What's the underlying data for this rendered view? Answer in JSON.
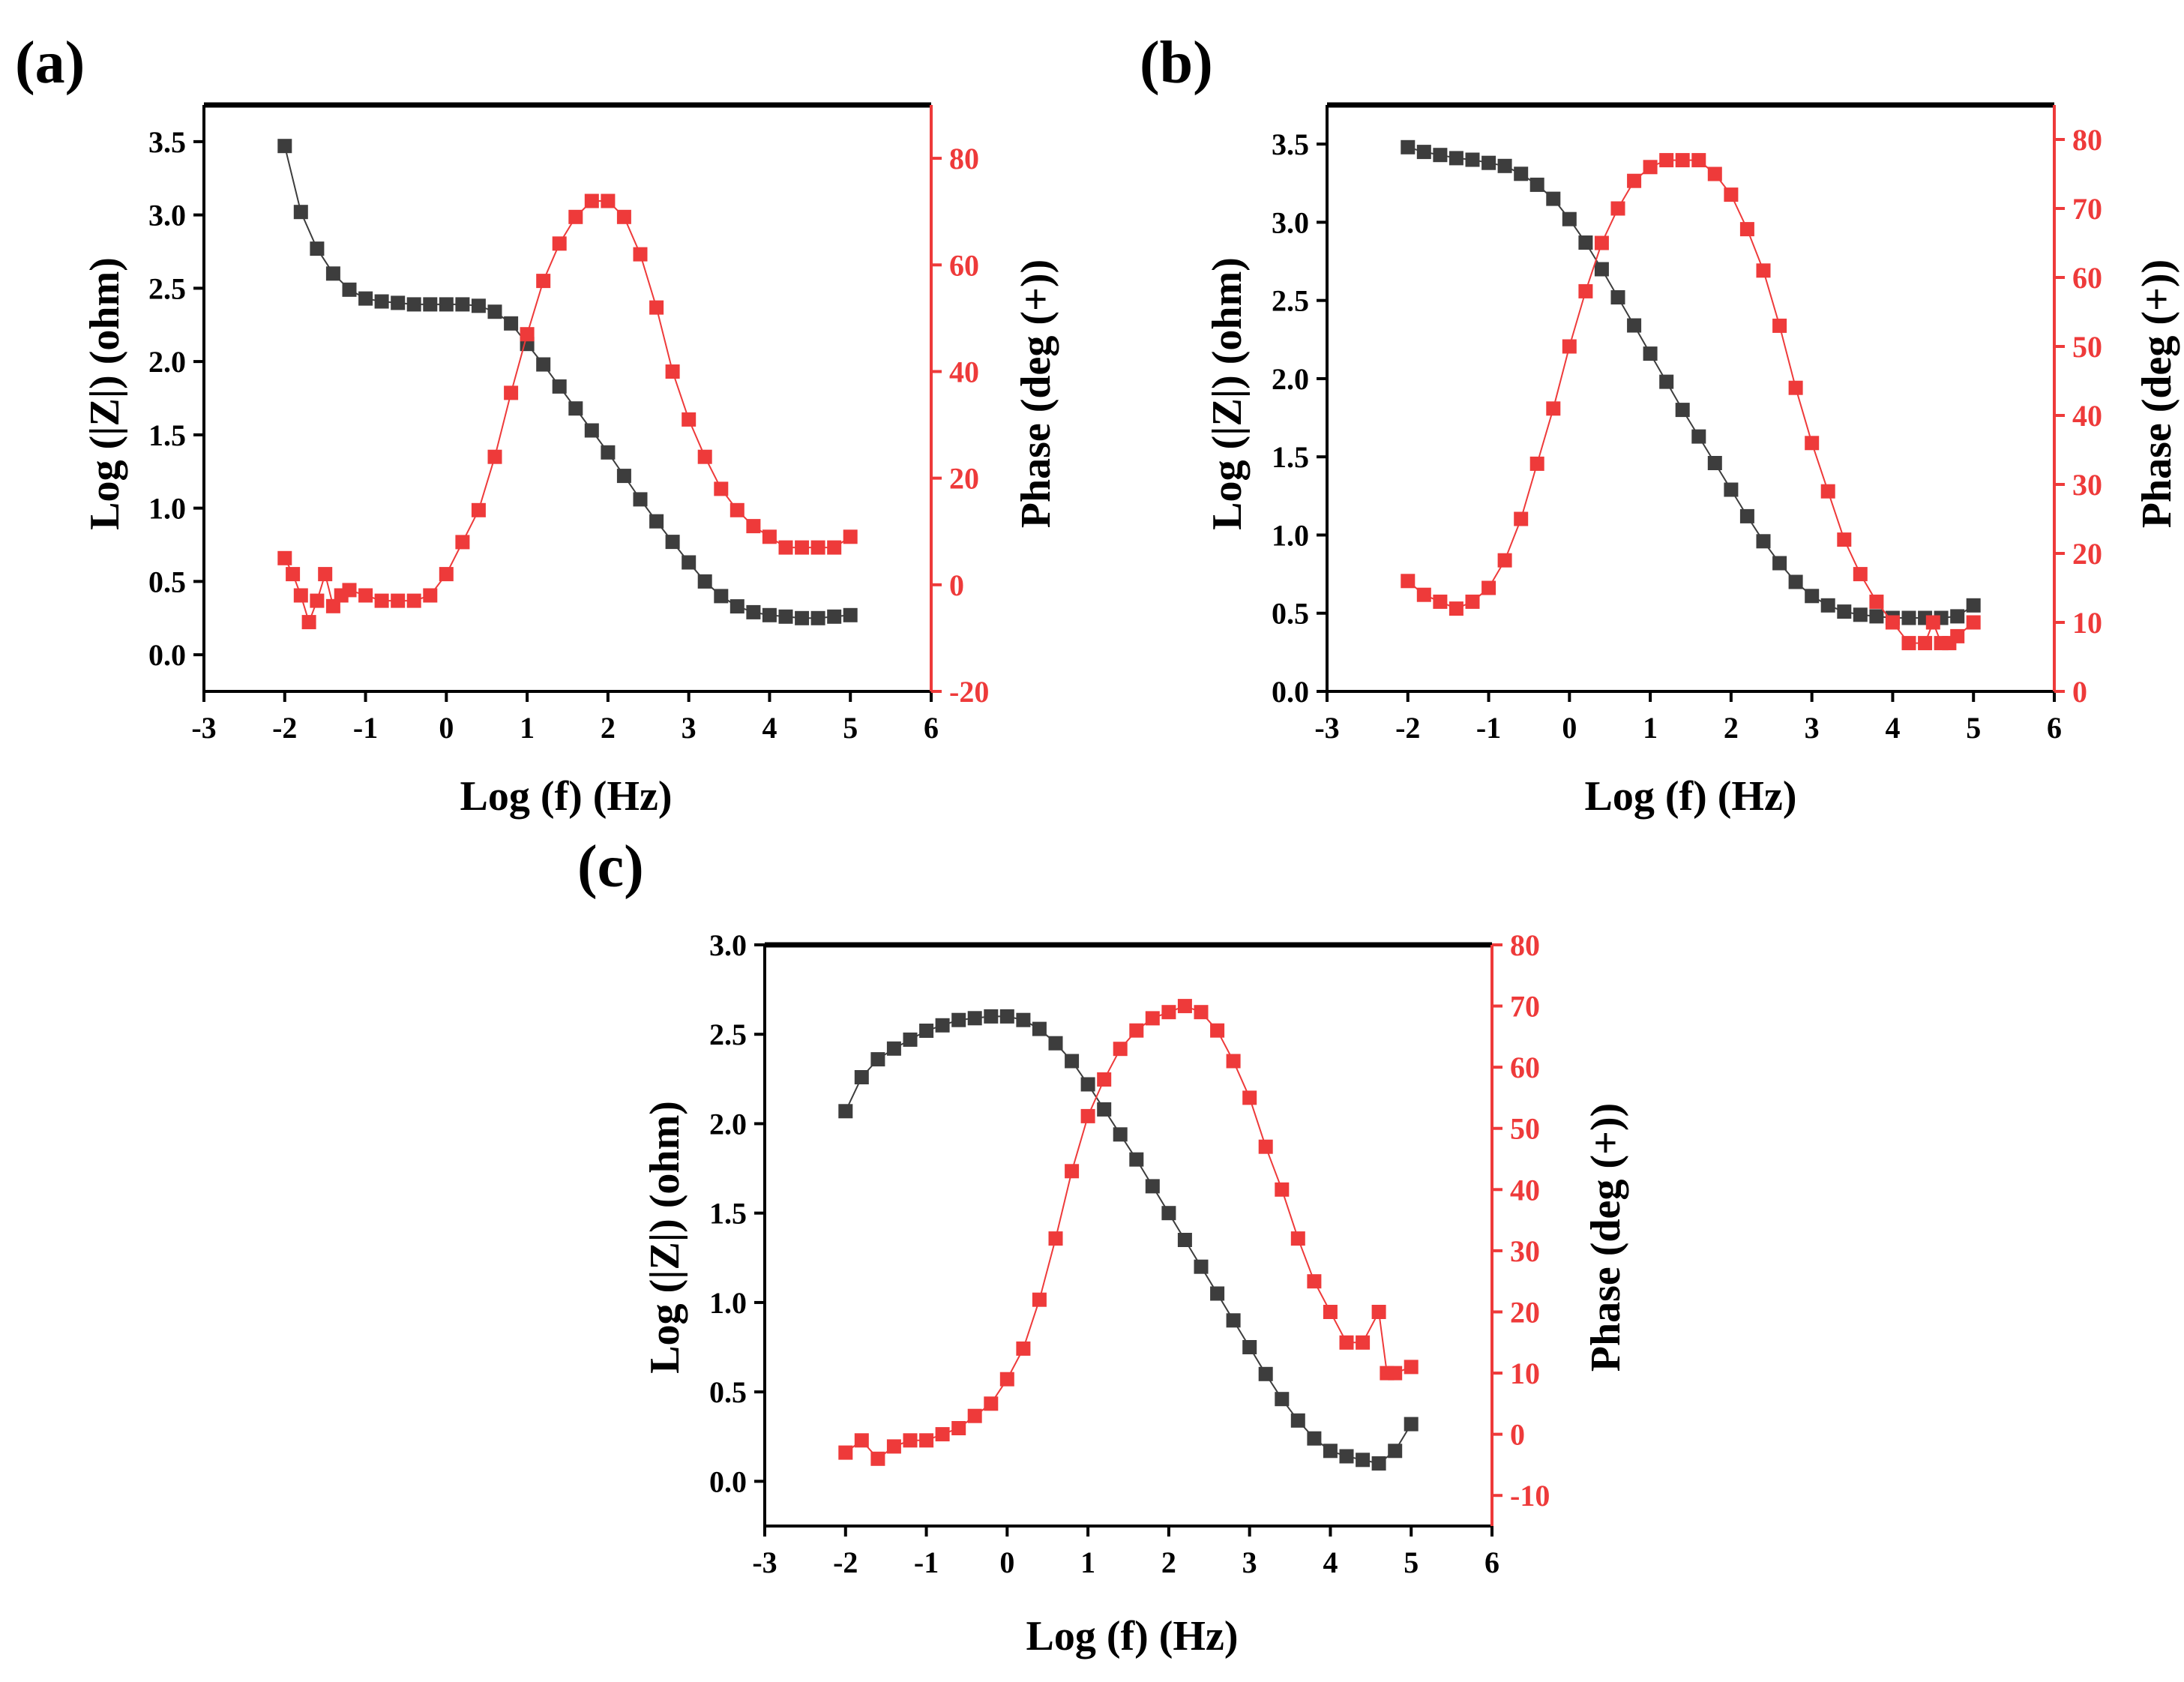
{
  "figure": {
    "colors": {
      "impedance": "#3d3d3d",
      "phase": "#ee3a3a",
      "frame": "#000000"
    }
  },
  "chart_data": [
    {
      "panel_label": "(a)",
      "type": "scatter",
      "xlabel": "Log (f) (Hz)",
      "ylabel_left": "Log (|Z|) (ohm)",
      "ylabel_right": "Phase (deg (+))",
      "xlim": [
        -3,
        6
      ],
      "ylim_left": [
        -0.25,
        3.75
      ],
      "ylim_right": [
        -20,
        90
      ],
      "xticks": [
        "-3",
        "-2",
        "-1",
        "0",
        "1",
        "2",
        "3",
        "4",
        "5",
        "6"
      ],
      "yticks_left": [
        "0.0",
        "0.5",
        "1.0",
        "1.5",
        "2.0",
        "2.5",
        "3.0",
        "3.5"
      ],
      "yticks_right": [
        "-20",
        "0",
        "20",
        "40",
        "60",
        "80"
      ],
      "series": [
        {
          "name": "Log (|Z|)",
          "axis": "left",
          "color": "#3d3d3d",
          "points": [
            [
              -2.0,
              3.47
            ],
            [
              -1.8,
              3.02
            ],
            [
              -1.6,
              2.77
            ],
            [
              -1.4,
              2.6
            ],
            [
              -1.2,
              2.49
            ],
            [
              -1.0,
              2.43
            ],
            [
              -0.8,
              2.41
            ],
            [
              -0.6,
              2.4
            ],
            [
              -0.4,
              2.39
            ],
            [
              -0.2,
              2.39
            ],
            [
              0.0,
              2.39
            ],
            [
              0.2,
              2.39
            ],
            [
              0.4,
              2.38
            ],
            [
              0.6,
              2.34
            ],
            [
              0.8,
              2.26
            ],
            [
              1.0,
              2.12
            ],
            [
              1.2,
              1.98
            ],
            [
              1.4,
              1.83
            ],
            [
              1.6,
              1.68
            ],
            [
              1.8,
              1.53
            ],
            [
              2.0,
              1.38
            ],
            [
              2.2,
              1.22
            ],
            [
              2.4,
              1.06
            ],
            [
              2.6,
              0.91
            ],
            [
              2.8,
              0.77
            ],
            [
              3.0,
              0.63
            ],
            [
              3.2,
              0.5
            ],
            [
              3.4,
              0.4
            ],
            [
              3.6,
              0.33
            ],
            [
              3.8,
              0.29
            ],
            [
              4.0,
              0.27
            ],
            [
              4.2,
              0.26
            ],
            [
              4.4,
              0.25
            ],
            [
              4.6,
              0.25
            ],
            [
              4.8,
              0.26
            ],
            [
              5.0,
              0.27
            ]
          ]
        },
        {
          "name": "Phase",
          "axis": "right",
          "color": "#ee3a3a",
          "points": [
            [
              -2.0,
              5
            ],
            [
              -1.9,
              2
            ],
            [
              -1.8,
              -2
            ],
            [
              -1.7,
              -7
            ],
            [
              -1.6,
              -3
            ],
            [
              -1.5,
              2
            ],
            [
              -1.4,
              -4
            ],
            [
              -1.3,
              -2
            ],
            [
              -1.2,
              -1
            ],
            [
              -1.0,
              -2
            ],
            [
              -0.8,
              -3
            ],
            [
              -0.6,
              -3
            ],
            [
              -0.4,
              -3
            ],
            [
              -0.2,
              -2
            ],
            [
              0.0,
              2
            ],
            [
              0.2,
              8
            ],
            [
              0.4,
              14
            ],
            [
              0.6,
              24
            ],
            [
              0.8,
              36
            ],
            [
              1.0,
              47
            ],
            [
              1.2,
              57
            ],
            [
              1.4,
              64
            ],
            [
              1.6,
              69
            ],
            [
              1.8,
              72
            ],
            [
              2.0,
              72
            ],
            [
              2.2,
              69
            ],
            [
              2.4,
              62
            ],
            [
              2.6,
              52
            ],
            [
              2.8,
              40
            ],
            [
              3.0,
              31
            ],
            [
              3.2,
              24
            ],
            [
              3.4,
              18
            ],
            [
              3.6,
              14
            ],
            [
              3.8,
              11
            ],
            [
              4.0,
              9
            ],
            [
              4.2,
              7
            ],
            [
              4.4,
              7
            ],
            [
              4.6,
              7
            ],
            [
              4.8,
              7
            ],
            [
              5.0,
              9
            ]
          ]
        }
      ]
    },
    {
      "panel_label": "(b)",
      "type": "scatter",
      "xlabel": "Log (f) (Hz)",
      "ylabel_left": "Log (|Z|) (ohm)",
      "ylabel_right": "Phase (deg (+))",
      "xlim": [
        -3,
        6
      ],
      "ylim_left": [
        0.0,
        3.75
      ],
      "ylim_right": [
        0,
        85
      ],
      "xticks": [
        "-3",
        "-2",
        "-1",
        "0",
        "1",
        "2",
        "3",
        "4",
        "5",
        "6"
      ],
      "yticks_left": [
        "0.0",
        "0.5",
        "1.0",
        "1.5",
        "2.0",
        "2.5",
        "3.0",
        "3.5"
      ],
      "yticks_right": [
        "0",
        "10",
        "20",
        "30",
        "40",
        "50",
        "60",
        "70",
        "80"
      ],
      "series": [
        {
          "name": "Log (|Z|)",
          "axis": "left",
          "color": "#3d3d3d",
          "points": [
            [
              -2.0,
              3.48
            ],
            [
              -1.8,
              3.45
            ],
            [
              -1.6,
              3.43
            ],
            [
              -1.4,
              3.41
            ],
            [
              -1.2,
              3.4
            ],
            [
              -1.0,
              3.38
            ],
            [
              -0.8,
              3.36
            ],
            [
              -0.6,
              3.31
            ],
            [
              -0.4,
              3.24
            ],
            [
              -0.2,
              3.15
            ],
            [
              0.0,
              3.02
            ],
            [
              0.2,
              2.87
            ],
            [
              0.4,
              2.7
            ],
            [
              0.6,
              2.52
            ],
            [
              0.8,
              2.34
            ],
            [
              1.0,
              2.16
            ],
            [
              1.2,
              1.98
            ],
            [
              1.4,
              1.8
            ],
            [
              1.6,
              1.63
            ],
            [
              1.8,
              1.46
            ],
            [
              2.0,
              1.29
            ],
            [
              2.2,
              1.12
            ],
            [
              2.4,
              0.96
            ],
            [
              2.6,
              0.82
            ],
            [
              2.8,
              0.7
            ],
            [
              3.0,
              0.61
            ],
            [
              3.2,
              0.55
            ],
            [
              3.4,
              0.51
            ],
            [
              3.6,
              0.49
            ],
            [
              3.8,
              0.48
            ],
            [
              4.0,
              0.47
            ],
            [
              4.2,
              0.47
            ],
            [
              4.4,
              0.47
            ],
            [
              4.6,
              0.47
            ],
            [
              4.8,
              0.48
            ],
            [
              5.0,
              0.55
            ]
          ]
        },
        {
          "name": "Phase",
          "axis": "right",
          "color": "#ee3a3a",
          "points": [
            [
              -2.0,
              16
            ],
            [
              -1.8,
              14
            ],
            [
              -1.6,
              13
            ],
            [
              -1.4,
              12
            ],
            [
              -1.2,
              13
            ],
            [
              -1.0,
              15
            ],
            [
              -0.8,
              19
            ],
            [
              -0.6,
              25
            ],
            [
              -0.4,
              33
            ],
            [
              -0.2,
              41
            ],
            [
              0.0,
              50
            ],
            [
              0.2,
              58
            ],
            [
              0.4,
              65
            ],
            [
              0.6,
              70
            ],
            [
              0.8,
              74
            ],
            [
              1.0,
              76
            ],
            [
              1.2,
              77
            ],
            [
              1.4,
              77
            ],
            [
              1.6,
              77
            ],
            [
              1.8,
              75
            ],
            [
              2.0,
              72
            ],
            [
              2.2,
              67
            ],
            [
              2.4,
              61
            ],
            [
              2.6,
              53
            ],
            [
              2.8,
              44
            ],
            [
              3.0,
              36
            ],
            [
              3.2,
              29
            ],
            [
              3.4,
              22
            ],
            [
              3.6,
              17
            ],
            [
              3.8,
              13
            ],
            [
              4.0,
              10
            ],
            [
              4.2,
              7
            ],
            [
              4.4,
              7
            ],
            [
              4.5,
              10
            ],
            [
              4.6,
              7
            ],
            [
              4.7,
              7
            ],
            [
              4.8,
              8
            ],
            [
              5.0,
              10
            ]
          ]
        }
      ]
    },
    {
      "panel_label": "(c)",
      "type": "scatter",
      "xlabel": "Log (f) (Hz)",
      "ylabel_left": "Log (|Z|) (ohm)",
      "ylabel_right": "Phase (deg (+))",
      "xlim": [
        -3,
        6
      ],
      "ylim_left": [
        -0.25,
        3.0
      ],
      "ylim_right": [
        -15,
        80
      ],
      "xticks": [
        "-3",
        "-2",
        "-1",
        "0",
        "1",
        "2",
        "3",
        "4",
        "5",
        "6"
      ],
      "yticks_left": [
        "0.0",
        "0.5",
        "1.0",
        "1.5",
        "2.0",
        "2.5",
        "3.0"
      ],
      "yticks_right": [
        "-10",
        "0",
        "10",
        "20",
        "30",
        "40",
        "50",
        "60",
        "70",
        "80"
      ],
      "series": [
        {
          "name": "Log (|Z|)",
          "axis": "left",
          "color": "#3d3d3d",
          "points": [
            [
              -2.0,
              2.07
            ],
            [
              -1.8,
              2.26
            ],
            [
              -1.6,
              2.36
            ],
            [
              -1.4,
              2.42
            ],
            [
              -1.2,
              2.47
            ],
            [
              -1.0,
              2.52
            ],
            [
              -0.8,
              2.55
            ],
            [
              -0.6,
              2.58
            ],
            [
              -0.4,
              2.59
            ],
            [
              -0.2,
              2.6
            ],
            [
              0.0,
              2.6
            ],
            [
              0.2,
              2.58
            ],
            [
              0.4,
              2.53
            ],
            [
              0.6,
              2.45
            ],
            [
              0.8,
              2.35
            ],
            [
              1.0,
              2.22
            ],
            [
              1.2,
              2.08
            ],
            [
              1.4,
              1.94
            ],
            [
              1.6,
              1.8
            ],
            [
              1.8,
              1.65
            ],
            [
              2.0,
              1.5
            ],
            [
              2.2,
              1.35
            ],
            [
              2.4,
              1.2
            ],
            [
              2.6,
              1.05
            ],
            [
              2.8,
              0.9
            ],
            [
              3.0,
              0.75
            ],
            [
              3.2,
              0.6
            ],
            [
              3.4,
              0.46
            ],
            [
              3.6,
              0.34
            ],
            [
              3.8,
              0.24
            ],
            [
              4.0,
              0.17
            ],
            [
              4.2,
              0.14
            ],
            [
              4.4,
              0.12
            ],
            [
              4.6,
              0.1
            ],
            [
              4.8,
              0.17
            ],
            [
              5.0,
              0.32
            ]
          ]
        },
        {
          "name": "Phase",
          "axis": "right",
          "color": "#ee3a3a",
          "points": [
            [
              -2.0,
              -3
            ],
            [
              -1.8,
              -1
            ],
            [
              -1.6,
              -4
            ],
            [
              -1.4,
              -2
            ],
            [
              -1.2,
              -1
            ],
            [
              -1.0,
              -1
            ],
            [
              -0.8,
              0
            ],
            [
              -0.6,
              1
            ],
            [
              -0.4,
              3
            ],
            [
              -0.2,
              5
            ],
            [
              0.0,
              9
            ],
            [
              0.2,
              14
            ],
            [
              0.4,
              22
            ],
            [
              0.6,
              32
            ],
            [
              0.8,
              43
            ],
            [
              1.0,
              52
            ],
            [
              1.2,
              58
            ],
            [
              1.4,
              63
            ],
            [
              1.6,
              66
            ],
            [
              1.8,
              68
            ],
            [
              2.0,
              69
            ],
            [
              2.2,
              70
            ],
            [
              2.4,
              69
            ],
            [
              2.6,
              66
            ],
            [
              2.8,
              61
            ],
            [
              3.0,
              55
            ],
            [
              3.2,
              47
            ],
            [
              3.4,
              40
            ],
            [
              3.6,
              32
            ],
            [
              3.8,
              25
            ],
            [
              4.0,
              20
            ],
            [
              4.2,
              15
            ],
            [
              4.4,
              15
            ],
            [
              4.6,
              20
            ],
            [
              4.7,
              10
            ],
            [
              4.8,
              10
            ],
            [
              5.0,
              11
            ]
          ]
        }
      ]
    }
  ]
}
